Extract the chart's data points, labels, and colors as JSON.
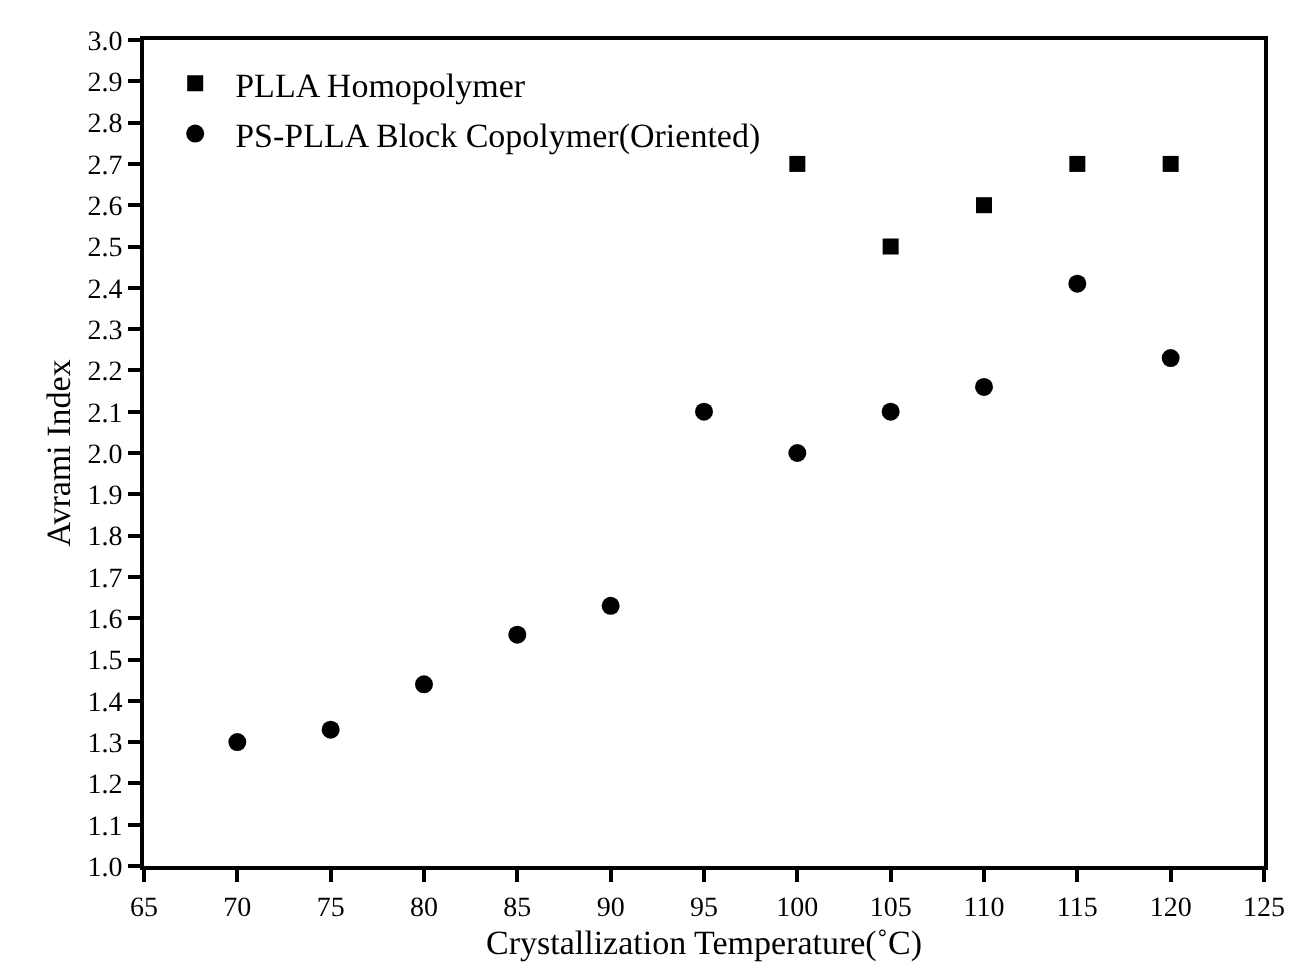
{
  "chart_data": {
    "type": "scatter",
    "xlabel": "Crystallization Temperature(˚C)",
    "ylabel": "Avrami Index",
    "xlim": [
      65,
      125
    ],
    "xticks": [
      65,
      70,
      75,
      80,
      85,
      90,
      95,
      100,
      105,
      110,
      115,
      120,
      125
    ],
    "ylim": [
      1.0,
      3.0
    ],
    "yticks": [
      {
        "value": 1.0,
        "label": "1.0"
      },
      {
        "value": 1.1,
        "label": "1.1"
      },
      {
        "value": 1.2,
        "label": "1.2"
      },
      {
        "value": 1.3,
        "label": "1.3"
      },
      {
        "value": 1.4,
        "label": "1.4"
      },
      {
        "value": 1.5,
        "label": "1.5"
      },
      {
        "value": 1.6,
        "label": "1.6"
      },
      {
        "value": 1.7,
        "label": "1.7"
      },
      {
        "value": 1.8,
        "label": "1.8"
      },
      {
        "value": 1.9,
        "label": "1.9"
      },
      {
        "value": 2.0,
        "label": "2.0"
      },
      {
        "value": 2.1,
        "label": "2.1"
      },
      {
        "value": 2.2,
        "label": "2.2"
      },
      {
        "value": 2.3,
        "label": "2.3"
      },
      {
        "value": 2.4,
        "label": "2.4"
      },
      {
        "value": 2.5,
        "label": "2.5"
      },
      {
        "value": 2.6,
        "label": "2.6"
      },
      {
        "value": 2.7,
        "label": "2.7"
      },
      {
        "value": 2.8,
        "label": "2.8"
      },
      {
        "value": 2.9,
        "label": "2.9"
      },
      {
        "value": 3.0,
        "label": "3.0"
      }
    ],
    "legend": "top left",
    "series": [
      {
        "name": "PLLA Homopolymer",
        "color": "#000000",
        "marker": "square",
        "x": [
          100,
          105,
          110,
          115,
          120
        ],
        "values": [
          2.7,
          2.5,
          2.6,
          2.7,
          2.7
        ]
      },
      {
        "name": "PS-PLLA Block Copolymer(Oriented)",
        "color": "#000000",
        "marker": "circle",
        "x": [
          70,
          75,
          80,
          85,
          90,
          95,
          100,
          105,
          110,
          115,
          120
        ],
        "values": [
          1.3,
          1.33,
          1.44,
          1.56,
          1.63,
          2.1,
          2.0,
          2.1,
          2.16,
          2.41,
          2.23
        ]
      }
    ]
  }
}
